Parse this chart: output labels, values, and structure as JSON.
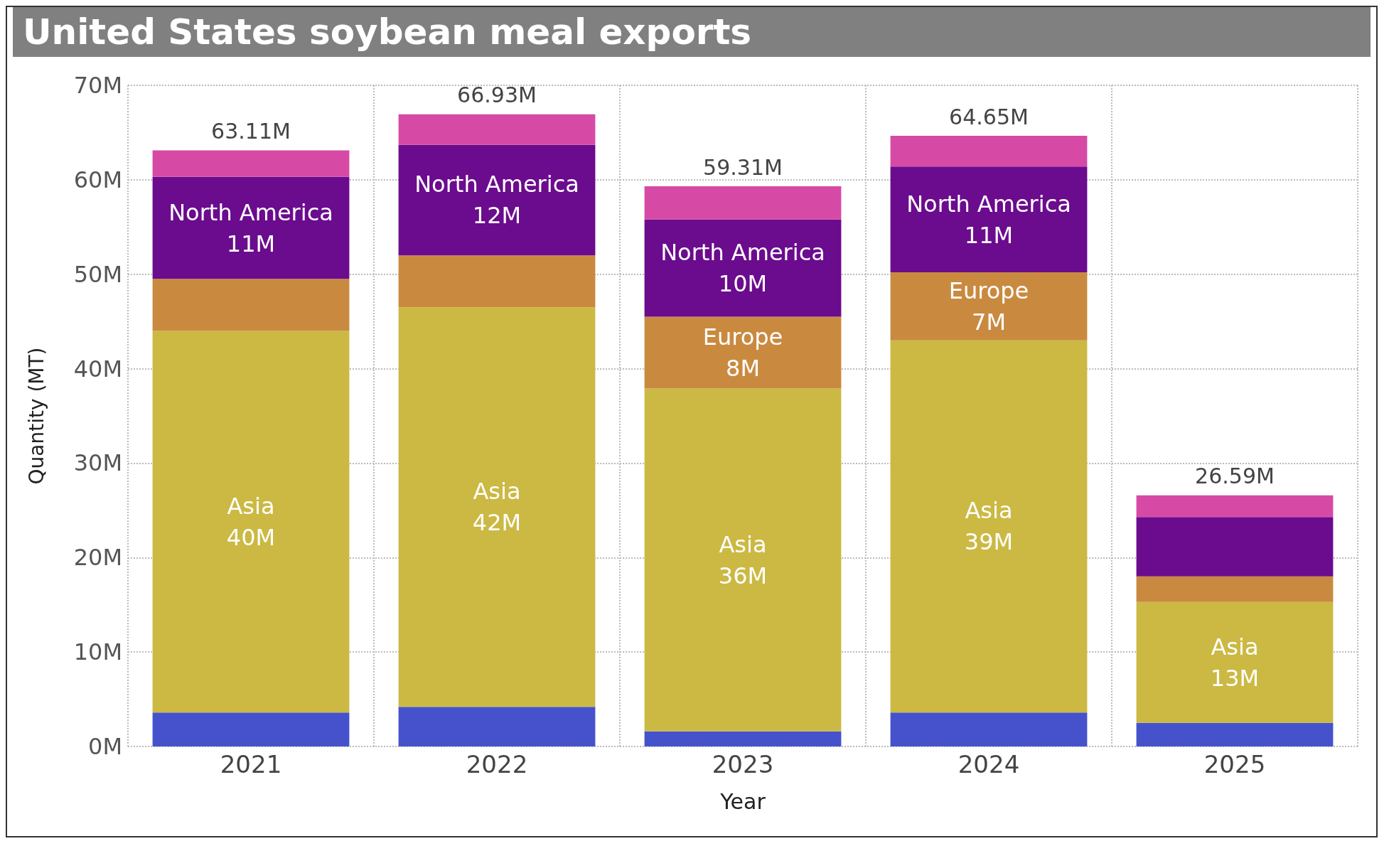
{
  "chart_data": {
    "type": "bar",
    "title": "United States soybean meal exports",
    "xlabel": "Year",
    "ylabel": "Quantity (MT)",
    "categories": [
      "2021",
      "2022",
      "2023",
      "2024",
      "2025"
    ],
    "stacked": true,
    "grid": true,
    "legend": false,
    "ylim": [
      0,
      70
    ],
    "yticks": [
      {
        "value": 0,
        "label": "0M"
      },
      {
        "value": 10,
        "label": "10M"
      },
      {
        "value": 20,
        "label": "20M"
      },
      {
        "value": 30,
        "label": "30M"
      },
      {
        "value": 40,
        "label": "40M"
      },
      {
        "value": 50,
        "label": "50M"
      },
      {
        "value": 60,
        "label": "60M"
      },
      {
        "value": 70,
        "label": "70M"
      }
    ],
    "series": [
      {
        "color": "#4652cc",
        "values": [
          3.6,
          4.2,
          1.6,
          3.6,
          2.5
        ]
      },
      {
        "name": "Asia",
        "color": "#cbb944",
        "values": [
          40.4,
          42.3,
          36.3,
          39.4,
          12.8
        ],
        "value_labels": [
          "40M",
          "42M",
          "36M",
          "39M",
          "13M"
        ]
      },
      {
        "name": "Europe",
        "color": "#c98a40",
        "values": [
          5.5,
          5.5,
          7.6,
          7.2,
          2.7
        ],
        "value_labels": [
          null,
          null,
          "8M",
          "7M",
          null
        ]
      },
      {
        "name": "North America",
        "color": "#6b0b8e",
        "values": [
          10.8,
          11.7,
          10.3,
          11.2,
          6.3
        ],
        "value_labels": [
          "11M",
          "12M",
          "10M",
          "11M",
          null
        ]
      },
      {
        "color": "#d64aa6",
        "values": [
          2.81,
          3.23,
          3.51,
          3.25,
          2.29
        ]
      }
    ],
    "totals": [
      "63.11M",
      "66.93M",
      "59.31M",
      "64.65M",
      "26.59M"
    ]
  }
}
